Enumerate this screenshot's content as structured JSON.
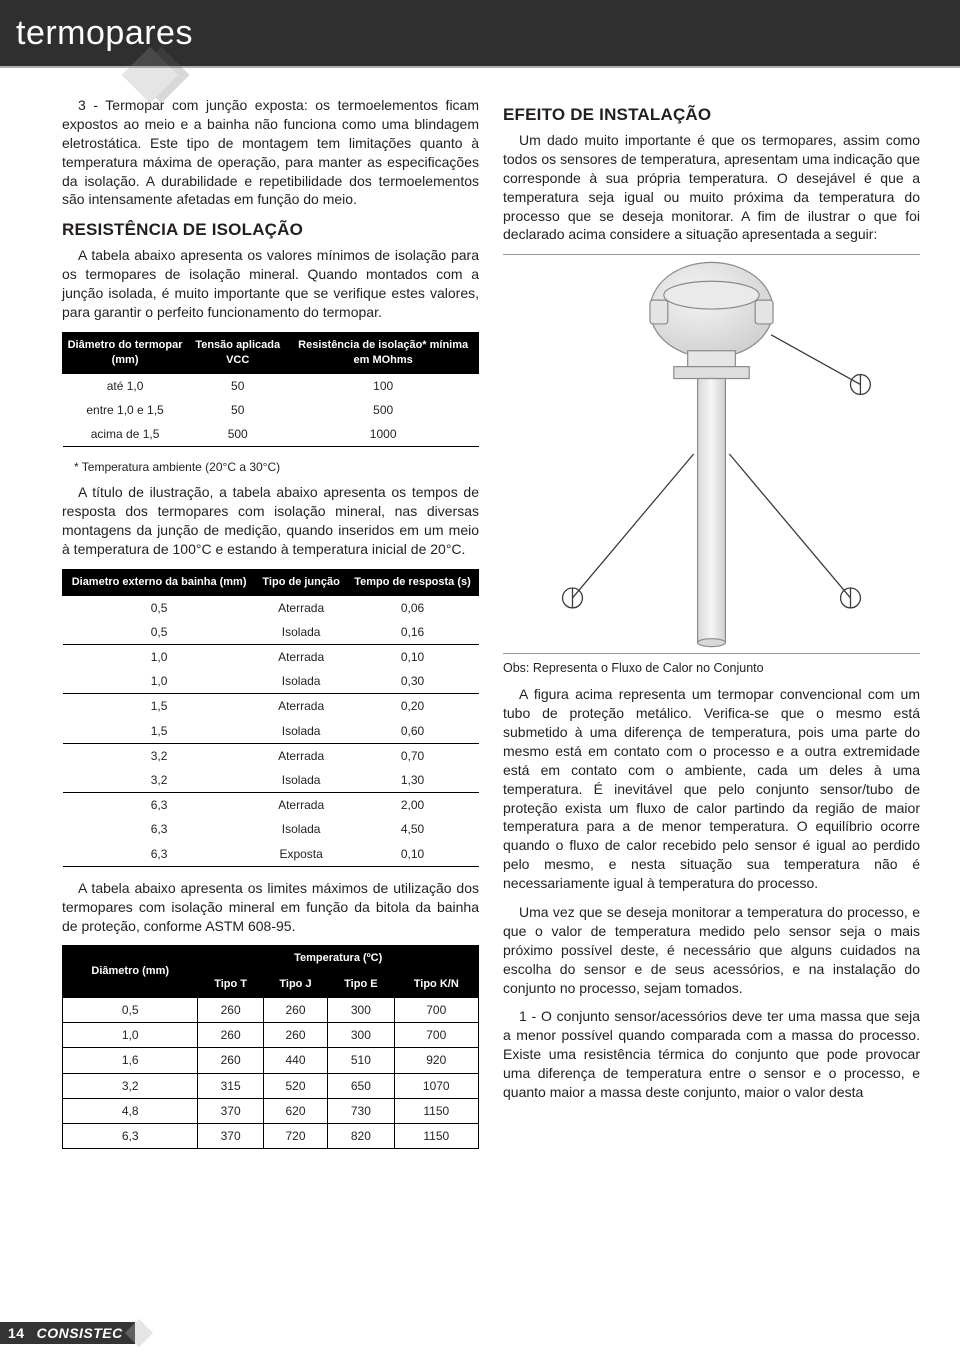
{
  "header": {
    "title": "termopares"
  },
  "footer": {
    "page": "14",
    "brand": "CONSISTEC"
  },
  "left": {
    "intro": "3 - Termopar com junção exposta: os termoelementos ficam expostos ao meio e a bainha não funciona como uma blindagem eletrostática. Este tipo de montagem tem limitações quanto à temperatura máxima de operação, para manter as especificações da isolação. A durabilidade e repetibilidade dos termoelementos são intensamente afetadas em função do meio.",
    "h1": "Resistência de Isolação",
    "p1": "A tabela abaixo apresenta os valores mínimos de isolação para os termopares de isolação mineral. Quando montados com a junção isolada, é muito importante que se verifique estes valores, para garantir o perfeito funcionamento do termopar.",
    "table1": {
      "headers": [
        "Diâmetro do termopar (mm)",
        "Tensão aplicada VCC",
        "Resistência de isolação* mínima em MOhms"
      ],
      "rows": [
        [
          "até 1,0",
          "50",
          "100"
        ],
        [
          "entre 1,0 e 1,5",
          "50",
          "500"
        ],
        [
          "acima de 1,5",
          "500",
          "1000"
        ]
      ]
    },
    "footnote1": "* Temperatura ambiente (20°C a 30°C)",
    "p2": "A título de ilustração, a tabela abaixo apresenta os tempos de resposta dos termopares com isolação mineral, nas diversas montagens da junção de medição, quando inseridos em um meio à temperatura de 100°C e estando à temperatura inicial de 20°C.",
    "table2": {
      "headers": [
        "Diametro externo da bainha (mm)",
        "Tipo de junção",
        "Tempo de resposta (s)"
      ],
      "groups": [
        [
          [
            "0,5",
            "Aterrada",
            "0,06"
          ],
          [
            "0,5",
            "Isolada",
            "0,16"
          ]
        ],
        [
          [
            "1,0",
            "Aterrada",
            "0,10"
          ],
          [
            "1,0",
            "Isolada",
            "0,30"
          ]
        ],
        [
          [
            "1,5",
            "Aterrada",
            "0,20"
          ],
          [
            "1,5",
            "Isolada",
            "0,60"
          ]
        ],
        [
          [
            "3,2",
            "Aterrada",
            "0,70"
          ],
          [
            "3,2",
            "Isolada",
            "1,30"
          ]
        ],
        [
          [
            "6,3",
            "Aterrada",
            "2,00"
          ],
          [
            "6,3",
            "Isolada",
            "4,50"
          ],
          [
            "6,3",
            "Exposta",
            "0,10"
          ]
        ]
      ]
    },
    "p3": "A tabela abaixo apresenta os limites máximos de utilização dos termopares com isolação mineral em função da bitola da bainha de proteção, conforme ASTM 608-95.",
    "table3": {
      "col0": "Diâmetro  (mm)",
      "spanhdr": "Temperatura (ºC)",
      "sub": [
        "Tipo T",
        "Tipo J",
        "Tipo E",
        "Tipo K/N"
      ],
      "rows": [
        [
          "0,5",
          "260",
          "260",
          "300",
          "700"
        ],
        [
          "1,0",
          "260",
          "260",
          "300",
          "700"
        ],
        [
          "1,6",
          "260",
          "440",
          "510",
          "920"
        ],
        [
          "3,2",
          "315",
          "520",
          "650",
          "1070"
        ],
        [
          "4,8",
          "370",
          "620",
          "730",
          "1150"
        ],
        [
          "6,3",
          "370",
          "720",
          "820",
          "1150"
        ]
      ]
    }
  },
  "right": {
    "h1": "Efeito de Instalação",
    "p1": "Um dado muito importante é que os termopares, assim como todos os sensores de temperatura, apresentam uma indicação que corresponde à sua própria temperatura. O desejável é que a temperatura seja igual ou muito próxima da temperatura do processo que se deseja monitorar. A fim de ilustrar o que foi declarado acima considere a situação apresentada a seguir:",
    "caption": "Obs: Representa o Fluxo de Calor no Conjunto",
    "p2": "A figura acima representa um termopar convencional com um tubo de proteção metálico. Verifica-se que o mesmo está submetido à uma diferença de temperatura, pois uma parte do mesmo está em contato com o processo e a outra extremidade está em contato com o ambiente, cada um deles à uma temperatura. É inevitável que pelo conjunto sensor/tubo de proteção exista um fluxo de calor partindo da região de maior temperatura para a de menor temperatura. O equilíbrio ocorre quando o fluxo de calor recebido pelo sensor é igual ao perdido pelo mesmo, e nesta situação sua temperatura não é necessariamente igual à temperatura do processo.",
    "p3": "Uma vez que se deseja monitorar a temperatura do processo, e que o valor de temperatura medido pelo sensor seja o mais próximo possível deste, é necessário que alguns cuidados na escolha do sensor e de seus acessórios, e na instalação do conjunto no processo, sejam tomados.",
    "p4": "1 - O conjunto sensor/acessórios deve ter uma massa que seja a menor possível quando comparada com a massa do processo. Existe uma resistência térmica do conjunto que pode provocar uma diferença de temperatura entre o sensor e o processo, e quanto maior a massa deste conjunto, maior o valor desta"
  },
  "diagram": {
    "bg": "#f3f3f3",
    "head_fill": "#e6e6e6",
    "stroke": "#8a8a8a",
    "line": "#444444"
  }
}
